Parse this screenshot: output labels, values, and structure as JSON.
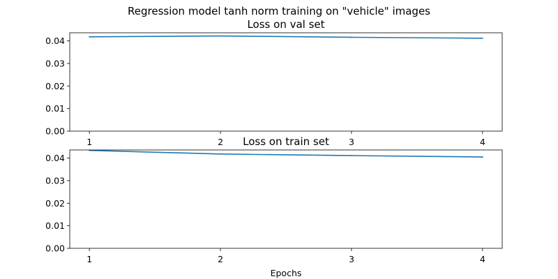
{
  "figure": {
    "suptitle": "Regression model tanh norm training on \"vehicle\" images"
  },
  "chart_data": [
    {
      "type": "line",
      "title": "Loss on val set",
      "xlabel": "",
      "ylabel": "",
      "x": [
        1,
        2,
        3,
        4
      ],
      "xticks": [
        "1",
        "2",
        "3",
        "4"
      ],
      "yticks": [
        "0.00",
        "0.01",
        "0.02",
        "0.03",
        "0.04"
      ],
      "xlim": [
        0.85,
        4.15
      ],
      "ylim": [
        0,
        0.0436
      ],
      "grid": false,
      "series": [
        {
          "color": "#1f77b4",
          "values": [
            0.0418,
            0.0422,
            0.0416,
            0.0412
          ]
        }
      ]
    },
    {
      "type": "line",
      "title": "Loss on train set",
      "xlabel": "Epochs",
      "ylabel": "",
      "x": [
        1,
        2,
        3,
        4
      ],
      "xticks": [
        "1",
        "2",
        "3",
        "4"
      ],
      "yticks": [
        "0.00",
        "0.01",
        "0.02",
        "0.03",
        "0.04"
      ],
      "xlim": [
        0.85,
        4.15
      ],
      "ylim": [
        0,
        0.0436
      ],
      "grid": false,
      "series": [
        {
          "color": "#1f77b4",
          "values": [
            0.0434,
            0.0418,
            0.0411,
            0.0405
          ]
        }
      ]
    }
  ]
}
